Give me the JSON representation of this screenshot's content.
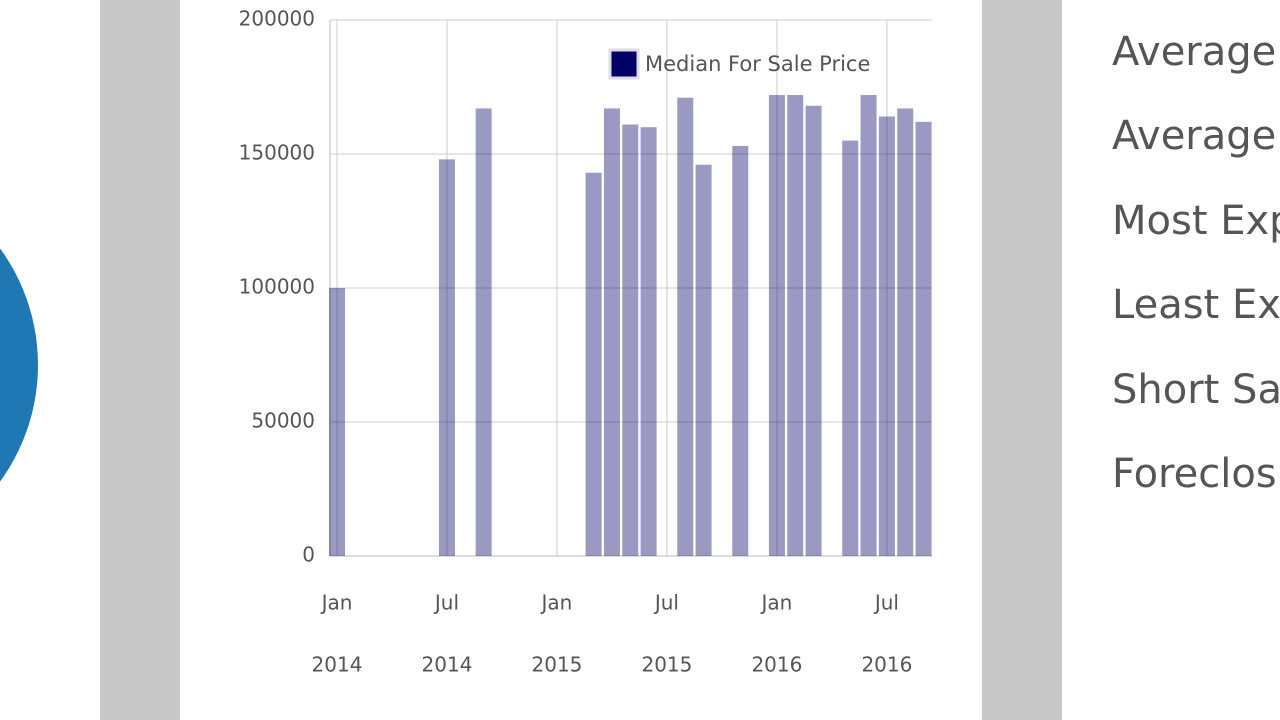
{
  "chart_data": {
    "type": "bar",
    "x": [
      "2014-01",
      "2014-07",
      "2014-09",
      "2015-03",
      "2015-04",
      "2015-05",
      "2015-06",
      "2015-08",
      "2015-09",
      "2015-11",
      "2016-01",
      "2016-02",
      "2016-03",
      "2016-05",
      "2016-06",
      "2016-07",
      "2016-08",
      "2016-09"
    ],
    "series": [
      {
        "name": "Median For Sale Price",
        "color": "#000066",
        "values": [
          100000,
          148000,
          167000,
          143000,
          167000,
          161000,
          160000,
          171000,
          146000,
          153000,
          172000,
          172000,
          168000,
          155000,
          172000,
          164000,
          167000,
          162000
        ]
      }
    ],
    "ylim": [
      0,
      200000
    ],
    "yticks": [
      0,
      50000,
      100000,
      150000,
      200000
    ],
    "xlim": [
      "2014-01",
      "2016-09"
    ],
    "xticks": [
      {
        "value": "2014-01",
        "label": [
          "Jan",
          "2014"
        ]
      },
      {
        "value": "2014-07",
        "label": [
          "Jul",
          "2014"
        ]
      },
      {
        "value": "2015-01",
        "label": [
          "Jan",
          "2015"
        ]
      },
      {
        "value": "2015-07",
        "label": [
          "Jul",
          "2015"
        ]
      },
      {
        "value": "2016-01",
        "label": [
          "Jan",
          "2016"
        ]
      },
      {
        "value": "2016-07",
        "label": [
          "Jul",
          "2016"
        ]
      }
    ],
    "grid": true,
    "legend": "top-right"
  },
  "stats": [
    "Average",
    "Average",
    "Most Exp",
    "Least Exp",
    "Short Sa",
    "Foreclos"
  ]
}
